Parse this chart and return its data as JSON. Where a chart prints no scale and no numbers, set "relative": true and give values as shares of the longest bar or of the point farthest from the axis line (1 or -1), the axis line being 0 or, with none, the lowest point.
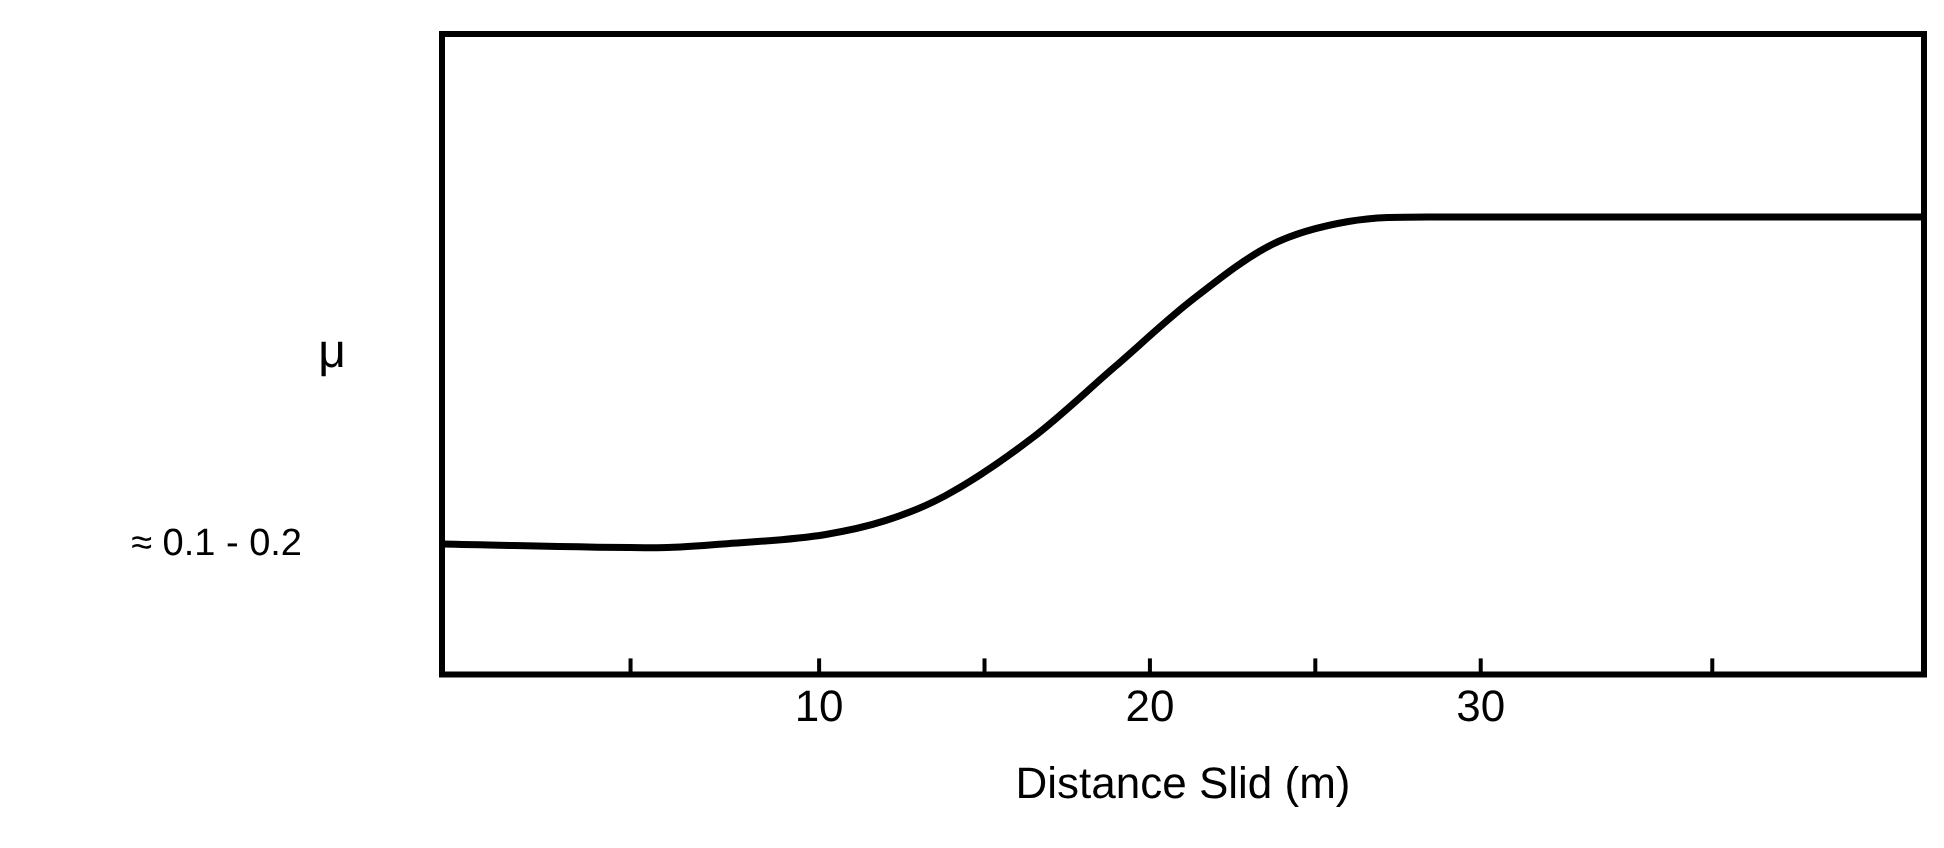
{
  "chart_data": {
    "type": "line",
    "relative": true,
    "xlabel": "Distance Slid (m)",
    "ylabel": "μ",
    "x": [
      -1.4,
      5.1,
      7.1,
      10.2,
      12,
      13.8,
      16.5,
      18.9,
      21.3,
      23.7,
      26.0,
      28.4,
      43.4
    ],
    "series": [
      {
        "color": "#000000",
        "values": [
          0.285,
          0.277,
          0.285,
          0.306,
          0.336,
          0.39,
          0.52,
          0.67,
          0.82,
          0.94,
          0.99,
          1,
          1
        ]
      }
    ],
    "xlim": [
      -1.4,
      43.4
    ],
    "xticks": [
      {
        "value": 4.3,
        "label": null
      },
      10,
      {
        "value": 15,
        "label": null
      },
      20,
      {
        "value": 25,
        "label": null
      },
      30,
      {
        "value": 37,
        "label": null
      }
    ],
    "annotations": [
      "≈ 0.1 - 0.2"
    ],
    "marker": "none",
    "line_style": "solid",
    "legend": false
  }
}
